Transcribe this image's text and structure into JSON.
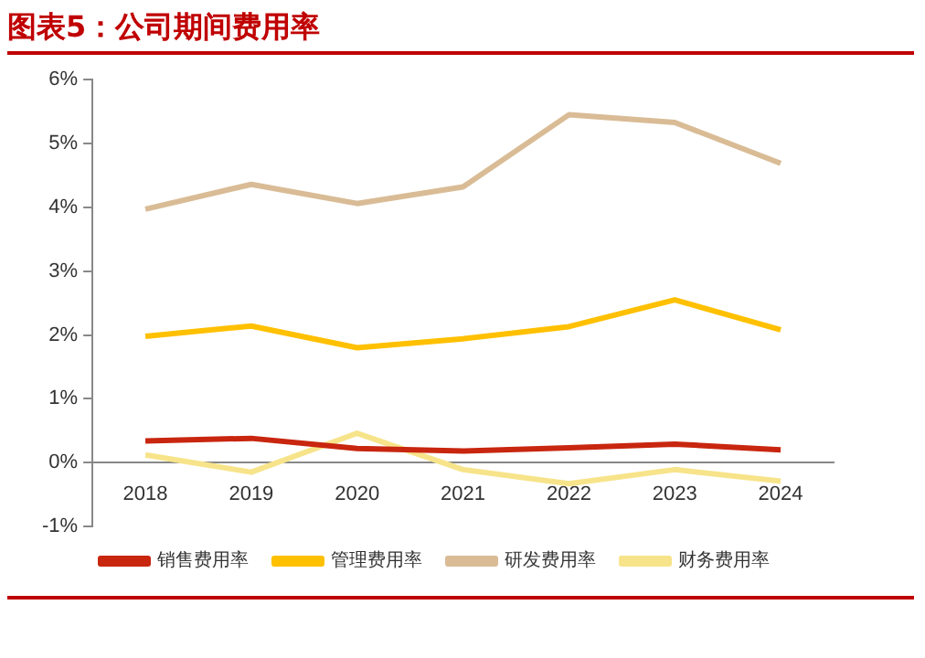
{
  "chart_data": {
    "type": "line",
    "title": "图表5：公司期间费用率",
    "categories": [
      "2018",
      "2019",
      "2020",
      "2021",
      "2022",
      "2023",
      "2024"
    ],
    "series": [
      {
        "name": "销售费用率",
        "color": "#c8260f",
        "values": [
          0.34,
          0.38,
          0.22,
          0.18,
          0.23,
          0.29,
          0.2
        ]
      },
      {
        "name": "管理费用率",
        "color": "#ffc000",
        "values": [
          1.98,
          2.14,
          1.8,
          1.94,
          2.13,
          2.55,
          2.08
        ]
      },
      {
        "name": "研发费用率",
        "color": "#d9bc96",
        "values": [
          3.97,
          4.36,
          4.06,
          4.32,
          5.45,
          5.33,
          4.69
        ]
      },
      {
        "name": "财务费用率",
        "color": "#f7e48a",
        "values": [
          0.12,
          -0.15,
          0.46,
          -0.11,
          -0.33,
          -0.11,
          -0.29
        ]
      }
    ],
    "ylim": [
      -1,
      6
    ],
    "yticks": [
      {
        "value": -1,
        "label": "-1%"
      },
      {
        "value": 0,
        "label": "0%"
      },
      {
        "value": 1,
        "label": "1%"
      },
      {
        "value": 2,
        "label": "2%"
      },
      {
        "value": 3,
        "label": "3%"
      },
      {
        "value": 4,
        "label": "4%"
      },
      {
        "value": 5,
        "label": "5%"
      },
      {
        "value": 6,
        "label": "6%"
      }
    ],
    "grid": false,
    "legend": "bottom",
    "marker": "none",
    "line_style": "solid"
  }
}
